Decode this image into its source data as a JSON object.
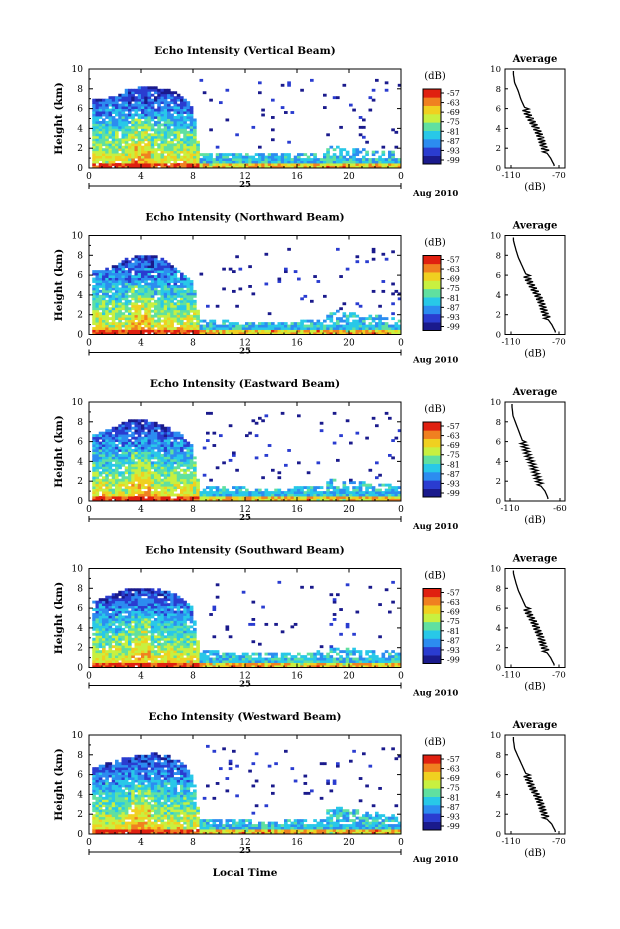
{
  "figure": {
    "xlabel_bottom": "Local Time",
    "colorbar_unit": "(dB)",
    "colorbar_ticks": [
      "-57",
      "-63",
      "-69",
      "-75",
      "-81",
      "-87",
      "-93",
      "-99"
    ],
    "x_ticks": [
      "0",
      "4",
      "8",
      "12",
      "16",
      "20",
      "0"
    ],
    "day_label": "25",
    "date_label": "Aug 2010",
    "ylabel": "Height (km)",
    "y_ticks": [
      "0",
      "2",
      "4",
      "6",
      "8",
      "10"
    ],
    "avg_title": "Average",
    "avg_xlabel": "(dB)",
    "colormap": [
      "#1a1a8c",
      "#2a3cd0",
      "#2c8cf0",
      "#28c8e8",
      "#60e0a0",
      "#c8f040",
      "#f0d020",
      "#f08020",
      "#e02010"
    ]
  },
  "chart_data": [
    {
      "type": "heatmap",
      "title": "Echo Intensity (Vertical Beam)",
      "xlim": [
        0,
        24
      ],
      "ylim": [
        0,
        10
      ],
      "cloud_top_km": [
        [
          0.5,
          7.0
        ],
        [
          2,
          7.2
        ],
        [
          3,
          8.0
        ],
        [
          4,
          8.2
        ],
        [
          5,
          8.2
        ],
        [
          6,
          8.0
        ],
        [
          7,
          7.5
        ],
        [
          8,
          6.2
        ],
        [
          8.5,
          1.6
        ],
        [
          14,
          1.4
        ],
        [
          18,
          1.6
        ],
        [
          18.5,
          2.2
        ],
        [
          22,
          1.8
        ],
        [
          24,
          1.6
        ]
      ],
      "avg_profile": {
        "xticks": [
          "-110",
          "-70"
        ],
        "xlim": [
          -115,
          -65
        ],
        "dB": [
          -74,
          -77,
          -80,
          -83,
          -85,
          -88,
          -92,
          -96,
          -99,
          -102,
          -104,
          -107,
          -108
        ],
        "height_km": [
          0.3,
          1.0,
          1.5,
          2.2,
          3.0,
          3.8,
          4.6,
          5.4,
          6.2,
          7.0,
          7.8,
          8.6,
          9.5
        ]
      }
    },
    {
      "type": "heatmap",
      "title": "Echo Intensity (Northward Beam)",
      "xlim": [
        0,
        24
      ],
      "ylim": [
        0,
        10
      ],
      "cloud_top_km": [
        [
          0.5,
          6.5
        ],
        [
          2,
          7.0
        ],
        [
          3,
          7.8
        ],
        [
          4,
          8.0
        ],
        [
          5,
          8.0
        ],
        [
          6,
          7.5
        ],
        [
          7,
          6.5
        ],
        [
          8,
          5.5
        ],
        [
          8.5,
          1.5
        ],
        [
          14,
          1.2
        ],
        [
          18,
          1.5
        ],
        [
          18.5,
          2.5
        ],
        [
          22,
          2.0
        ],
        [
          24,
          1.5
        ]
      ],
      "avg_profile": {
        "xticks": [
          "-110",
          "-70"
        ],
        "xlim": [
          -115,
          -65
        ],
        "dB": [
          -73,
          -76,
          -79,
          -82,
          -84,
          -87,
          -91,
          -95,
          -98,
          -101,
          -104,
          -106,
          -108
        ],
        "height_km": [
          0.3,
          1.0,
          1.5,
          2.2,
          3.0,
          3.8,
          4.6,
          5.4,
          6.2,
          7.0,
          7.8,
          8.6,
          9.5
        ]
      }
    },
    {
      "type": "heatmap",
      "title": "Echo Intensity (Eastward Beam)",
      "xlim": [
        0,
        24
      ],
      "ylim": [
        0,
        10
      ],
      "cloud_top_km": [
        [
          0.5,
          6.8
        ],
        [
          2,
          7.5
        ],
        [
          3,
          8.2
        ],
        [
          4,
          8.3
        ],
        [
          5,
          8.0
        ],
        [
          6,
          7.5
        ],
        [
          7,
          6.8
        ],
        [
          8,
          5.5
        ],
        [
          8.5,
          1.5
        ],
        [
          14,
          1.3
        ],
        [
          18,
          1.5
        ],
        [
          18.5,
          2.2
        ],
        [
          22,
          1.8
        ],
        [
          24,
          1.5
        ]
      ],
      "avg_profile": {
        "xticks": [
          "-110",
          "-60"
        ],
        "xlim": [
          -115,
          -55
        ],
        "dB": [
          -72,
          -75,
          -79,
          -82,
          -85,
          -88,
          -92,
          -95,
          -98,
          -101,
          -104,
          -107,
          -108
        ],
        "height_km": [
          0.3,
          1.0,
          1.5,
          2.2,
          3.0,
          3.8,
          4.6,
          5.4,
          6.2,
          7.0,
          7.8,
          8.6,
          9.5
        ]
      }
    },
    {
      "type": "heatmap",
      "title": "Echo Intensity (Southward Beam)",
      "xlim": [
        0,
        24
      ],
      "ylim": [
        0,
        10
      ],
      "cloud_top_km": [
        [
          0.5,
          6.8
        ],
        [
          2,
          7.5
        ],
        [
          3,
          8.0
        ],
        [
          4,
          8.1
        ],
        [
          5,
          8.0
        ],
        [
          6,
          7.8
        ],
        [
          7,
          7.2
        ],
        [
          8,
          6.0
        ],
        [
          8.5,
          1.7
        ],
        [
          14,
          1.5
        ],
        [
          18,
          1.7
        ],
        [
          18.5,
          2.0
        ],
        [
          22,
          1.8
        ],
        [
          24,
          1.6
        ]
      ],
      "avg_profile": {
        "xticks": [
          "-110",
          "-70"
        ],
        "xlim": [
          -115,
          -65
        ],
        "dB": [
          -74,
          -77,
          -80,
          -83,
          -85,
          -88,
          -91,
          -95,
          -98,
          -101,
          -104,
          -106,
          -108
        ],
        "height_km": [
          0.3,
          1.0,
          1.5,
          2.2,
          3.0,
          3.8,
          4.6,
          5.4,
          6.2,
          7.0,
          7.8,
          8.6,
          9.5
        ]
      }
    },
    {
      "type": "heatmap",
      "title": "Echo Intensity (Westward Beam)",
      "xlim": [
        0,
        24
      ],
      "ylim": [
        0,
        10
      ],
      "cloud_top_km": [
        [
          0.5,
          6.8
        ],
        [
          2,
          7.5
        ],
        [
          3,
          7.8
        ],
        [
          4,
          8.0
        ],
        [
          5,
          8.2
        ],
        [
          6,
          8.0
        ],
        [
          7,
          7.5
        ],
        [
          8,
          6.0
        ],
        [
          8.5,
          1.6
        ],
        [
          14,
          1.3
        ],
        [
          18,
          1.6
        ],
        [
          18.5,
          2.8
        ],
        [
          22,
          2.2
        ],
        [
          24,
          1.8
        ]
      ],
      "avg_profile": {
        "xticks": [
          "-110",
          "-70"
        ],
        "xlim": [
          -115,
          -65
        ],
        "dB": [
          -73,
          -76,
          -80,
          -83,
          -85,
          -88,
          -92,
          -95,
          -98,
          -101,
          -104,
          -107,
          -108
        ],
        "height_km": [
          0.3,
          1.0,
          1.5,
          2.2,
          3.0,
          3.8,
          4.6,
          5.4,
          6.2,
          7.0,
          7.8,
          8.6,
          9.5
        ]
      }
    }
  ]
}
